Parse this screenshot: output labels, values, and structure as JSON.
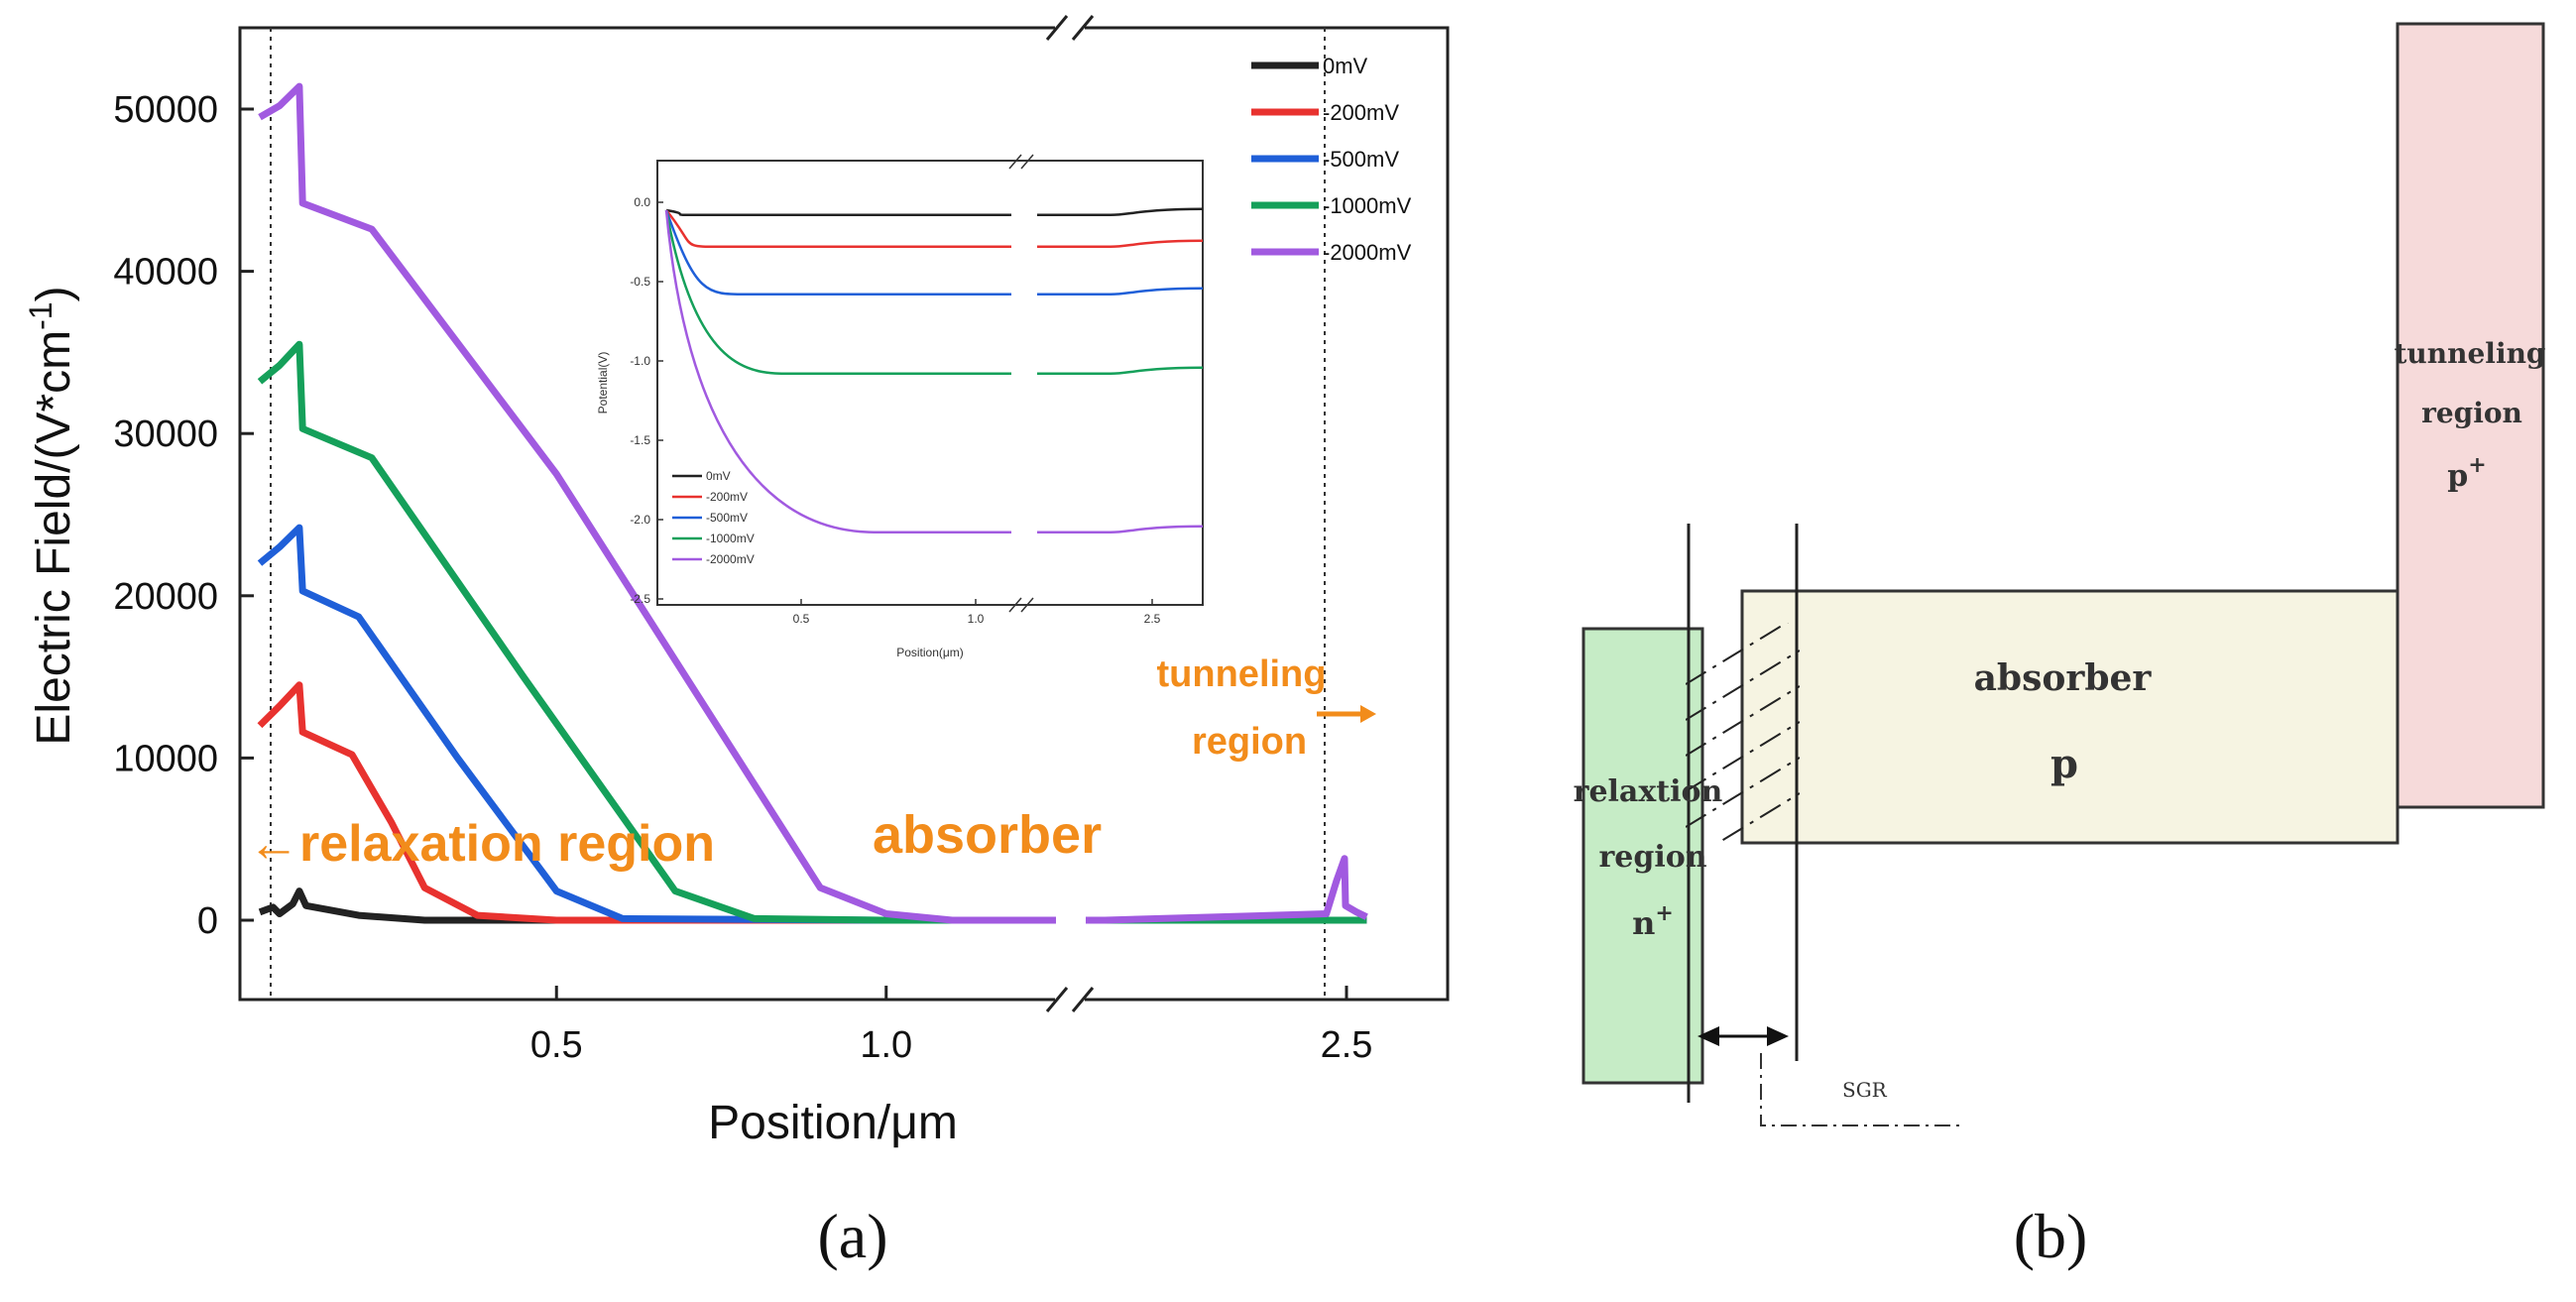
{
  "chart_data": [
    {
      "type": "line",
      "xlabel": "Position/μm",
      "ylabel_main": "Electric Field/(V*cm",
      "ylabel_sup": "-1",
      "ylabel_end": ")",
      "xticks": [
        "0.5",
        "1.0",
        "2.5"
      ],
      "yticks": [
        "0",
        "10000",
        "20000",
        "30000",
        "40000",
        "50000"
      ],
      "ylim": [
        -5000,
        55000
      ],
      "axis_break": "between 1.0 and 2.5",
      "legend_position": "top-right",
      "series": [
        {
          "name": "0mV",
          "color": "#222222",
          "points": [
            [
              0.05,
              500
            ],
            [
              0.07,
              800
            ],
            [
              0.08,
              400
            ],
            [
              0.1,
              1000
            ],
            [
              0.11,
              1800
            ],
            [
              0.12,
              900
            ],
            [
              0.2,
              300
            ],
            [
              0.3,
              0
            ],
            [
              1.0,
              0
            ],
            [
              1.2,
              0
            ],
            [
              2.49,
              0
            ],
            [
              2.6,
              0
            ]
          ]
        },
        {
          "name": "-200mV",
          "color": "#e8322f",
          "points": [
            [
              0.05,
              12000
            ],
            [
              0.08,
              13200
            ],
            [
              0.11,
              14500
            ],
            [
              0.115,
              11600
            ],
            [
              0.19,
              10200
            ],
            [
              0.25,
              6000
            ],
            [
              0.3,
              2000
            ],
            [
              0.38,
              300
            ],
            [
              0.5,
              0
            ],
            [
              1.0,
              0
            ],
            [
              2.6,
              0
            ]
          ]
        },
        {
          "name": "-500mV",
          "color": "#1f5fd8",
          "points": [
            [
              0.05,
              22000
            ],
            [
              0.08,
              23000
            ],
            [
              0.11,
              24200
            ],
            [
              0.115,
              20300
            ],
            [
              0.2,
              18700
            ],
            [
              0.35,
              10000
            ],
            [
              0.5,
              1800
            ],
            [
              0.6,
              100
            ],
            [
              1.0,
              0
            ],
            [
              2.6,
              0
            ]
          ]
        },
        {
          "name": "-1000mV",
          "color": "#15a05a",
          "points": [
            [
              0.05,
              33200
            ],
            [
              0.08,
              34200
            ],
            [
              0.11,
              35500
            ],
            [
              0.115,
              30300
            ],
            [
              0.22,
              28500
            ],
            [
              0.45,
              15000
            ],
            [
              0.68,
              1800
            ],
            [
              0.8,
              100
            ],
            [
              1.0,
              0
            ],
            [
              2.6,
              0
            ]
          ]
        },
        {
          "name": "-2000mV",
          "color": "#a15ae0",
          "points": [
            [
              0.05,
              49500
            ],
            [
              0.08,
              50200
            ],
            [
              0.11,
              51400
            ],
            [
              0.115,
              44200
            ],
            [
              0.22,
              42600
            ],
            [
              0.5,
              27500
            ],
            [
              0.9,
              2000
            ],
            [
              1.0,
              400
            ],
            [
              1.1,
              0
            ],
            [
              1.3,
              0
            ],
            [
              2.4,
              400
            ],
            [
              2.45,
              2400
            ],
            [
              2.49,
              3800
            ],
            [
              2.495,
              900
            ],
            [
              2.55,
              500
            ],
            [
              2.6,
              200
            ]
          ]
        }
      ],
      "annotations": {
        "relaxation": "←relaxation region",
        "absorber": "absorber",
        "tunneling_1": "tunneling",
        "tunneling_2": "region"
      }
    },
    {
      "type": "line",
      "name": "inset",
      "xlabel": "Position(μm)",
      "ylabel": "Potential(V)",
      "xticks": [
        "0.5",
        "1.0",
        "2.5"
      ],
      "yticks": [
        "0.0",
        "-0.5",
        "-1.0",
        "-1.5",
        "-2.0",
        "-2.5"
      ],
      "ylim": [
        -2.5,
        0.2
      ],
      "legend": [
        "0mV",
        "-200mV",
        "-500mV",
        "-1000mV",
        "-2000mV"
      ],
      "series": [
        {
          "name": "0mV",
          "final": -0.08
        },
        {
          "name": "-200mV",
          "final": -0.28
        },
        {
          "name": "-500mV",
          "final": -0.58
        },
        {
          "name": "-1000mV",
          "final": -1.08
        },
        {
          "name": "-2000mV",
          "final": -2.08
        }
      ]
    }
  ],
  "captions": {
    "a": "(a)",
    "b": "(b)"
  },
  "diagram": {
    "relaxation_label_1": "relaxtion",
    "relaxation_label_2": "region",
    "relaxation_label_3": "n",
    "relaxation_sup": "+",
    "absorber_label_1": "absorber",
    "absorber_label_2": "p",
    "tunneling_label_1": "tunneling",
    "tunneling_label_2": "region",
    "tunneling_label_3": "p",
    "tunneling_sup": "+",
    "sgr_label": "SGR",
    "colors": {
      "relax": "#c6ecc6",
      "absorber": "#f6f4e2",
      "tunnel": "#f6dada",
      "orange": "#f28c1b"
    }
  }
}
